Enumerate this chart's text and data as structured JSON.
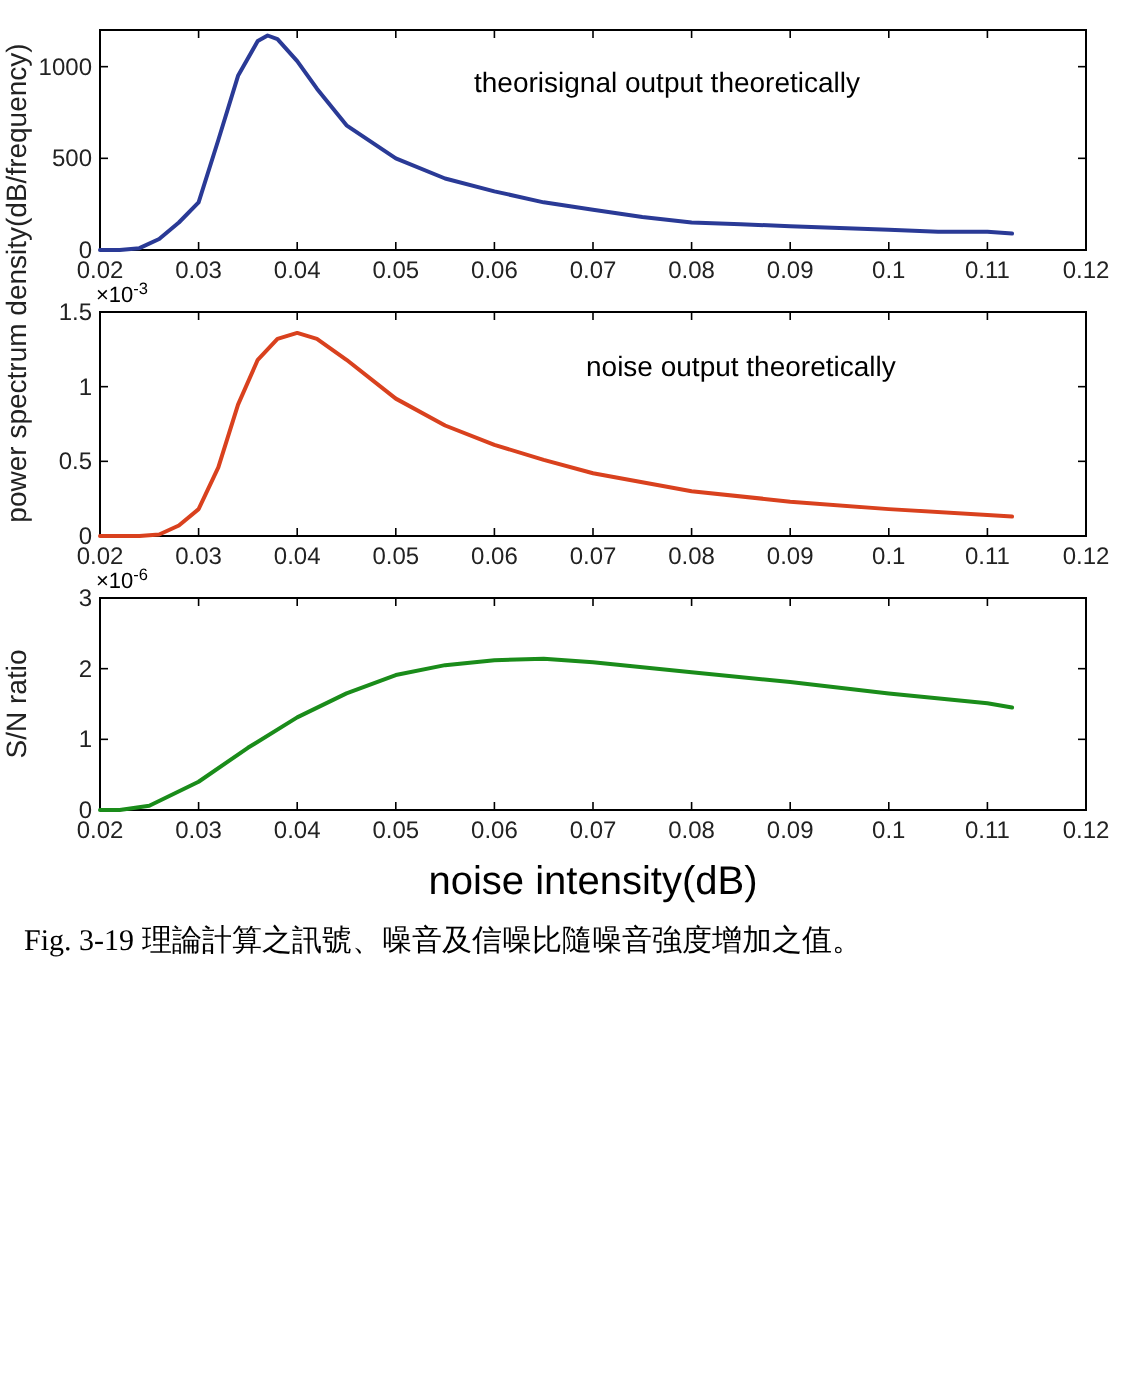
{
  "chart_data": [
    {
      "type": "line",
      "ylabel": "power spectrum density(dB/frequency)",
      "annotations": [
        "theorisignal output theoretically"
      ],
      "x": [
        0.02,
        0.022,
        0.024,
        0.026,
        0.028,
        0.03,
        0.032,
        0.034,
        0.036,
        0.037,
        0.038,
        0.04,
        0.042,
        0.045,
        0.05,
        0.055,
        0.06,
        0.065,
        0.07,
        0.075,
        0.08,
        0.085,
        0.09,
        0.095,
        0.1,
        0.105,
        0.11,
        0.1125
      ],
      "series": [
        {
          "color": "#2a3a96",
          "values": [
            0,
            0,
            10,
            60,
            150,
            260,
            600,
            950,
            1140,
            1170,
            1150,
            1030,
            880,
            680,
            500,
            390,
            320,
            260,
            220,
            180,
            150,
            140,
            130,
            120,
            110,
            100,
            100,
            90
          ]
        }
      ],
      "xlim": [
        0.02,
        0.12
      ],
      "xticks": [
        0.02,
        0.03,
        0.04,
        0.05,
        0.06,
        0.07,
        0.08,
        0.09,
        0.1,
        0.11,
        0.12
      ],
      "ylim": [
        0,
        1200
      ],
      "yticks": [
        0,
        500,
        1000
      ],
      "grid": false,
      "marker": "none",
      "line_style": "solid"
    },
    {
      "type": "line",
      "annotations": [
        "noise output theoretically",
        "×10$^{-3}$"
      ],
      "x": [
        0.02,
        0.024,
        0.026,
        0.028,
        0.03,
        0.032,
        0.034,
        0.036,
        0.038,
        0.04,
        0.042,
        0.045,
        0.05,
        0.055,
        0.06,
        0.065,
        0.07,
        0.08,
        0.09,
        0.1,
        0.11,
        0.1125
      ],
      "series": [
        {
          "color": "#d9411e",
          "values": [
            0,
            0,
            0.01,
            0.07,
            0.18,
            0.46,
            0.88,
            1.18,
            1.32,
            1.36,
            1.32,
            1.18,
            0.92,
            0.74,
            0.61,
            0.51,
            0.42,
            0.3,
            0.23,
            0.18,
            0.14,
            0.13
          ]
        }
      ],
      "xlim": [
        0.02,
        0.12
      ],
      "xticks": [
        0.02,
        0.03,
        0.04,
        0.05,
        0.06,
        0.07,
        0.08,
        0.09,
        0.1,
        0.11,
        0.12
      ],
      "ylim": [
        0,
        1.5
      ],
      "yticks": [
        0,
        0.5,
        1,
        1.5
      ],
      "grid": false,
      "marker": "none",
      "line_style": "solid"
    },
    {
      "type": "line",
      "ylabel": "S/N ratio",
      "xlabel": "noise intensity(dB)",
      "annotations": [
        "×10$^{-6}$",
        "Fig. 3-19 理論計算之訊號、噪音及信噪比隨噪音強度增加之值。"
      ],
      "x": [
        0.02,
        0.022,
        0.025,
        0.03,
        0.035,
        0.04,
        0.045,
        0.05,
        0.055,
        0.06,
        0.065,
        0.07,
        0.08,
        0.09,
        0.1,
        0.11,
        0.1125
      ],
      "series": [
        {
          "color": "#1a8c1a",
          "values": [
            0,
            0,
            0.06,
            0.4,
            0.88,
            1.31,
            1.65,
            1.91,
            2.05,
            2.12,
            2.14,
            2.09,
            1.95,
            1.81,
            1.65,
            1.51,
            1.45
          ]
        }
      ],
      "xlim": [
        0.02,
        0.12
      ],
      "xticks": [
        0.02,
        0.03,
        0.04,
        0.05,
        0.06,
        0.07,
        0.08,
        0.09,
        0.1,
        0.11,
        0.12
      ],
      "ylim": [
        0,
        3
      ],
      "yticks": [
        0,
        1,
        2,
        3
      ],
      "grid": false,
      "marker": "none",
      "line_style": "solid"
    }
  ]
}
